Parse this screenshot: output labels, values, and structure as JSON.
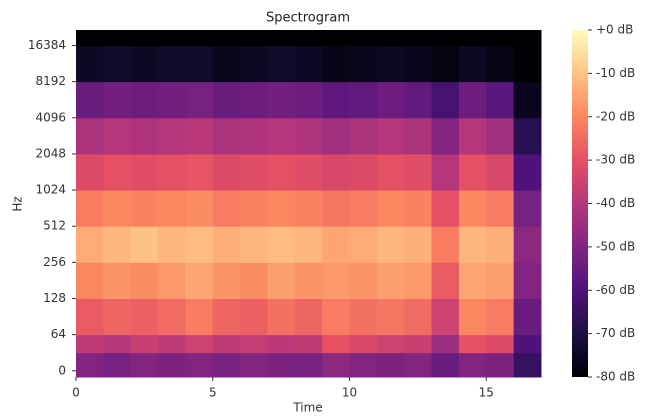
{
  "chart_data": {
    "type": "heatmap",
    "title": "Spectrogram",
    "x_label": "Time",
    "y_label": "Hz",
    "x_bins": [
      0,
      1,
      2,
      3,
      4,
      5,
      6,
      7,
      8,
      9,
      10,
      11,
      12,
      13,
      14,
      15,
      16,
      17
    ],
    "y_bins": [
      -11,
      32,
      64,
      128,
      256,
      512,
      1024,
      2048,
      4096,
      8192,
      16384,
      22050
    ],
    "z": [
      [
        -50,
        -52,
        -50,
        -51,
        -50,
        -52,
        -50,
        -51,
        -52,
        -48,
        -50,
        -51,
        -50,
        -55,
        -50,
        -51,
        -65
      ],
      [
        -38,
        -40,
        -36,
        -38,
        -35,
        -38,
        -37,
        -39,
        -38,
        -30,
        -33,
        -35,
        -36,
        -45,
        -30,
        -32,
        -60
      ],
      [
        -28,
        -26,
        -27,
        -25,
        -22,
        -26,
        -27,
        -24,
        -26,
        -22,
        -24,
        -23,
        -25,
        -35,
        -20,
        -22,
        -55
      ],
      [
        -20,
        -18,
        -19,
        -17,
        -15,
        -18,
        -19,
        -16,
        -18,
        -17,
        -18,
        -16,
        -17,
        -28,
        -15,
        -16,
        -50
      ],
      [
        -14,
        -12,
        -10,
        -12,
        -11,
        -13,
        -12,
        -11,
        -12,
        -15,
        -14,
        -12,
        -13,
        -22,
        -12,
        -13,
        -48
      ],
      [
        -22,
        -20,
        -21,
        -20,
        -19,
        -22,
        -21,
        -20,
        -21,
        -23,
        -22,
        -20,
        -21,
        -30,
        -20,
        -22,
        -52
      ],
      [
        -32,
        -30,
        -31,
        -30,
        -29,
        -32,
        -31,
        -30,
        -31,
        -33,
        -32,
        -30,
        -31,
        -40,
        -30,
        -33,
        -60
      ],
      [
        -42,
        -40,
        -41,
        -40,
        -39,
        -42,
        -41,
        -40,
        -41,
        -44,
        -42,
        -40,
        -42,
        -50,
        -40,
        -44,
        -68
      ],
      [
        -55,
        -53,
        -54,
        -53,
        -52,
        -55,
        -54,
        -53,
        -54,
        -57,
        -56,
        -54,
        -56,
        -62,
        -54,
        -58,
        -76
      ],
      [
        -75,
        -74,
        -75,
        -74,
        -74,
        -76,
        -75,
        -74,
        -75,
        -77,
        -76,
        -75,
        -76,
        -78,
        -75,
        -77,
        -80
      ],
      [
        -80,
        -80,
        -80,
        -80,
        -80,
        -80,
        -80,
        -80,
        -80,
        -80,
        -80,
        -80,
        -80,
        -80,
        -80,
        -80,
        -80
      ]
    ],
    "xlim": [
      0,
      17
    ],
    "xticks": [
      0,
      5,
      10,
      15
    ],
    "ylim": [
      -11,
      22050
    ],
    "yscale": "symlog",
    "linthresh": 64,
    "yticks": [
      0,
      64,
      128,
      256,
      512,
      1024,
      2048,
      4096,
      8192,
      16384
    ],
    "clim": [
      -80,
      0
    ],
    "cticks": [
      {
        "value": 0,
        "label": "+0 dB"
      },
      {
        "value": -10,
        "label": "-10 dB"
      },
      {
        "value": -20,
        "label": "-20 dB"
      },
      {
        "value": -30,
        "label": "-30 dB"
      },
      {
        "value": -40,
        "label": "-40 dB"
      },
      {
        "value": -50,
        "label": "-50 dB"
      },
      {
        "value": -60,
        "label": "-60 dB"
      },
      {
        "value": -70,
        "label": "-70 dB"
      },
      {
        "value": -80,
        "label": "-80 dB"
      }
    ],
    "colormap": [
      "#000004",
      "#1c1044",
      "#4f127b",
      "#812581",
      "#b5367a",
      "#e55064",
      "#fb8761",
      "#fec287",
      "#fcfdbf"
    ]
  }
}
